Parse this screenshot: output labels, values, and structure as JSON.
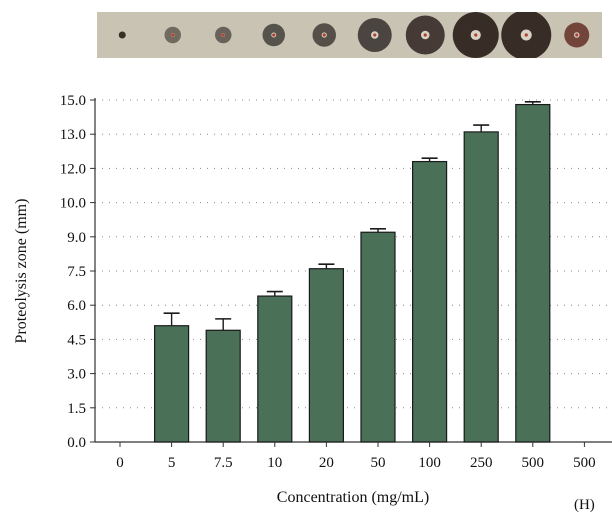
{
  "chart_data": {
    "type": "bar",
    "title": "",
    "xlabel": "Concentration (mg/mL)",
    "ylabel": "Proteolysis zone (mm)",
    "categories": [
      "0",
      "5",
      "7.5",
      "10",
      "20",
      "50",
      "100",
      "250",
      "500",
      "500"
    ],
    "category_footnote": "(H)",
    "values": [
      0,
      5.1,
      4.9,
      6.4,
      7.6,
      9.2,
      12.3,
      13.6,
      14.8,
      0
    ],
    "error": [
      0,
      0.55,
      0.5,
      0.2,
      0.2,
      0.15,
      0.15,
      0.3,
      0.12,
      0
    ],
    "ylim": [
      0,
      15
    ],
    "yticks": [
      "0.0",
      "1.5",
      "3.0",
      "4.5",
      "6.0",
      "7.5",
      "9.0",
      "10.0",
      "12.0",
      "13.0",
      "15.0"
    ],
    "grid": "dotted-horizontal",
    "colors": {
      "bar_fill": "#4a7158",
      "bar_stroke": "#1a1a1a",
      "axis": "#333333",
      "grid": "#888888"
    }
  },
  "photo_strip": {
    "spots": [
      {
        "size": 0.14,
        "color": "#3a2f26"
      },
      {
        "size": 0.33,
        "color": "#6a6258"
      },
      {
        "size": 0.33,
        "color": "#5f5a52"
      },
      {
        "size": 0.45,
        "color": "#4c4943"
      },
      {
        "size": 0.47,
        "color": "#4a4640"
      },
      {
        "size": 0.68,
        "color": "#403b37"
      },
      {
        "size": 0.78,
        "color": "#3a2f2a"
      },
      {
        "size": 0.92,
        "color": "#2b201b"
      },
      {
        "size": 1.0,
        "color": "#2a1f1a"
      },
      {
        "size": 0.5,
        "color": "#6a3a30"
      }
    ],
    "background": "#c9c3b3"
  }
}
